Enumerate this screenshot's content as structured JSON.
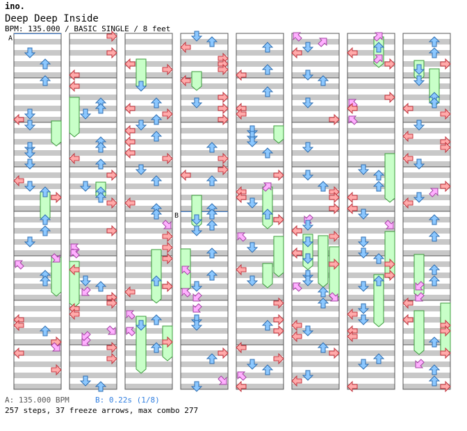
{
  "header": {
    "artist": "ino.",
    "title": "Deep Deep Inside",
    "info": "BPM: 135.000 / BASIC SINGLE / 8 feet"
  },
  "markers": {
    "a": "A",
    "b": "B"
  },
  "footer": {
    "bpm_note": "A: 135.000 BPM",
    "stop_note": "B: 0.22s (1/8)",
    "summary": "257 steps, 37 freeze arrows, max combo 277"
  },
  "colors": {
    "stripe": "#c8c8c8",
    "border": "#555555",
    "red": "#ffaaaa",
    "red_stroke": "#c0303a",
    "blue": "#8cc8ff",
    "blue_stroke": "#2c6cb0",
    "pink": "#ffb0ff",
    "pink_stroke": "#a040a0",
    "freeze": "#c8ffc8",
    "freeze_stroke": "#3a9a3a",
    "marker_line": "#3a7acc",
    "stop_color": "#2f7ee0"
  },
  "chart": {
    "columns": 8,
    "measures_per_column": 8,
    "total_measures": 64
  }
}
